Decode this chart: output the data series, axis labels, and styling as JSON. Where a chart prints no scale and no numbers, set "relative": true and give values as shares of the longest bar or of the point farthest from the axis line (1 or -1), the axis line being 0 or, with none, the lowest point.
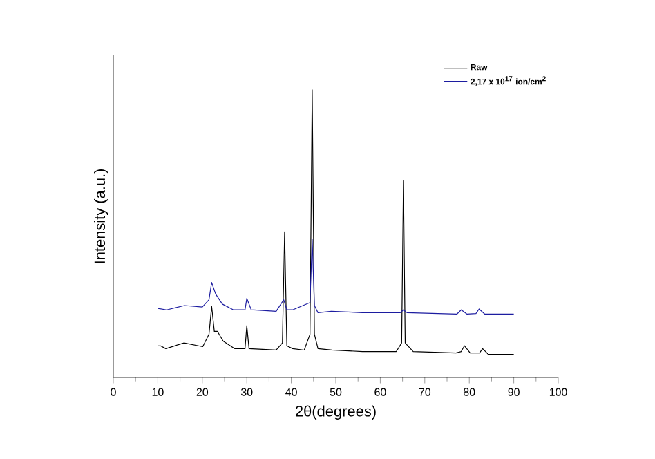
{
  "chart_data": {
    "type": "line",
    "relative": true,
    "xlabel": "2θ(degrees)",
    "ylabel": "Intensity (a.u.)",
    "xlim": [
      0,
      100
    ],
    "xticks": [
      0,
      10,
      20,
      30,
      40,
      50,
      60,
      70,
      80,
      90,
      100
    ],
    "legend": "top right",
    "grid": false,
    "marker": "none",
    "line_style": "solid",
    "series": [
      {
        "name": "**Raw**",
        "color": "#000000",
        "x": [
          10,
          10.6,
          11.8,
          15.9,
          20.1,
          21.5,
          22.1,
          22.7,
          23.4,
          24.7,
          27.3,
          29.6,
          30.0,
          30.5,
          36.6,
          38.0,
          38.5,
          39.0,
          40.3,
          42.9,
          44.2,
          44.7,
          45.2,
          46.0,
          49.1,
          56.0,
          63.6,
          64.8,
          65.2,
          65.6,
          67.4,
          77.0,
          78.2,
          78.9,
          80.2,
          82.3,
          83.0,
          84.3,
          90
        ],
        "values": [
          0.11,
          0.11,
          0.1,
          0.12,
          0.107,
          0.15,
          0.247,
          0.16,
          0.16,
          0.126,
          0.1,
          0.1,
          0.18,
          0.1,
          0.095,
          0.12,
          0.506,
          0.11,
          0.1,
          0.095,
          0.15,
          1.0,
          0.15,
          0.1,
          0.095,
          0.09,
          0.09,
          0.12,
          0.684,
          0.12,
          0.09,
          0.085,
          0.09,
          0.11,
          0.085,
          0.085,
          0.1,
          0.08,
          0.08
        ]
      },
      {
        "name": "**2,17 x 10$^{17}$ ion/cm$^{2}$**",
        "color": "#1c1ca0",
        "x": [
          10,
          12,
          16,
          20,
          21.5,
          22.1,
          23,
          24.5,
          27,
          29.6,
          30.0,
          31,
          36.6,
          38.3,
          39,
          40.3,
          44.2,
          44.7,
          45.2,
          46,
          49,
          56,
          64.5,
          65.2,
          66,
          77.2,
          78.2,
          79.5,
          81.5,
          82.2,
          83.5,
          90
        ],
        "values": [
          0.24,
          0.235,
          0.25,
          0.245,
          0.27,
          0.33,
          0.29,
          0.255,
          0.235,
          0.235,
          0.275,
          0.235,
          0.23,
          0.27,
          0.235,
          0.235,
          0.26,
          0.48,
          0.25,
          0.225,
          0.23,
          0.225,
          0.225,
          0.235,
          0.225,
          0.22,
          0.235,
          0.22,
          0.222,
          0.238,
          0.22,
          0.22
        ]
      }
    ]
  }
}
